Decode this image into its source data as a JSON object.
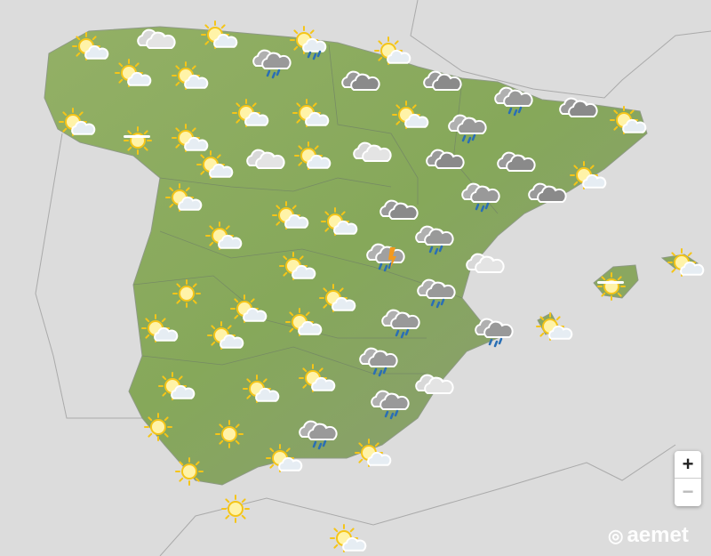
{
  "map": {
    "colors": {
      "sea": "#dcdcdc",
      "land": "#8fae5e",
      "land_neighbor": "#d2d2d2",
      "border": "#7a8a70"
    },
    "icons": [
      "sun-cloud",
      "cloud",
      "sun-cloud",
      "sun-cloud-rain",
      "rain",
      "sun-cloud",
      "sun-cloud",
      "sun-cloud",
      "overcast",
      "overcast",
      "rain",
      "overcast",
      "sun-cloud",
      "sun-haze",
      "sun-cloud",
      "sun-cloud",
      "sun-cloud",
      "rain",
      "sun-cloud",
      "sun-cloud",
      "sun-cloud",
      "cloud",
      "sun-cloud",
      "cloud",
      "overcast",
      "overcast",
      "sun-cloud",
      "sun-cloud",
      "rain",
      "overcast",
      "sun-cloud",
      "sun-cloud",
      "overcast",
      "sun-cloud",
      "rain",
      "storm",
      "cloud",
      "sun-cloud",
      "sun-cloud",
      "sun-haze",
      "sun",
      "rain",
      "sun-cloud",
      "sun-cloud",
      "rain",
      "sun-cloud",
      "rain",
      "sun-cloud",
      "sun-cloud",
      "sun-cloud",
      "rain",
      "sun-cloud",
      "sun-cloud",
      "sun-cloud",
      "cloud",
      "rain",
      "sun",
      "sun",
      "rain",
      "sun-cloud",
      "sun-cloud",
      "sun",
      "sun",
      "sun-cloud"
    ]
  },
  "controls": {
    "zoom_in": "+",
    "zoom_out": "−"
  },
  "logo": {
    "text": "aemet"
  }
}
